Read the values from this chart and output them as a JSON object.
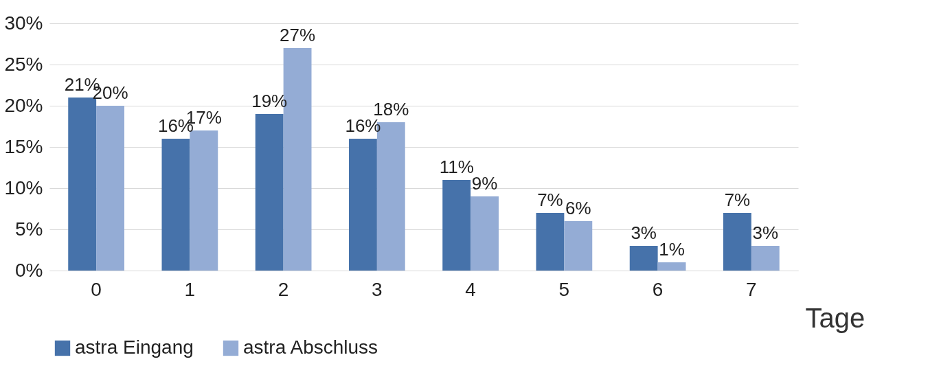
{
  "chart_data": {
    "type": "bar",
    "xlabel": "Tage",
    "categories": [
      "0",
      "1",
      "2",
      "3",
      "4",
      "5",
      "6",
      "7"
    ],
    "series": [
      {
        "name": "astra Eingang",
        "color": "#4672aa",
        "values": [
          21,
          16,
          19,
          16,
          11,
          7,
          3,
          7
        ],
        "value_labels": [
          "21%",
          "16%",
          "19%",
          "16%",
          "11%",
          "7%",
          "3%",
          "7%"
        ]
      },
      {
        "name": "astra Abschluss",
        "color": "#94acd5",
        "values": [
          20,
          17,
          27,
          18,
          9,
          6,
          1,
          3
        ],
        "value_labels": [
          "20%",
          "17%",
          "27%",
          "18%",
          "9%",
          "6%",
          "1%",
          "3%"
        ]
      }
    ],
    "ylim": [
      0,
      30
    ],
    "yticks": [
      {
        "value": 0,
        "label": "0%"
      },
      {
        "value": 5,
        "label": "5%"
      },
      {
        "value": 10,
        "label": "10%"
      },
      {
        "value": 15,
        "label": "15%"
      },
      {
        "value": 20,
        "label": "20%"
      },
      {
        "value": 25,
        "label": "25%"
      },
      {
        "value": 30,
        "label": "30%"
      }
    ],
    "grid": "y",
    "legend": "bottom"
  }
}
